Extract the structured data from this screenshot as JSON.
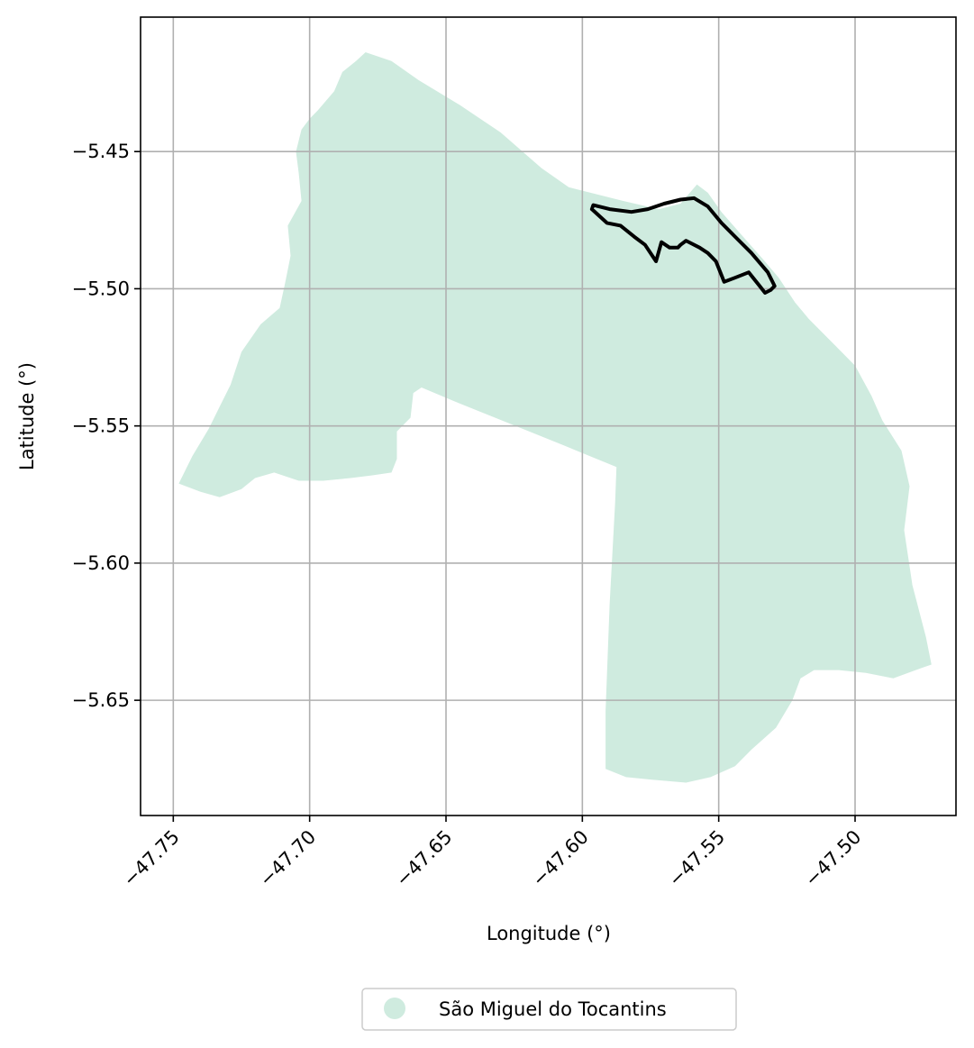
{
  "chart_data": {
    "type": "map",
    "xlabel": "Longitude (°)",
    "ylabel": "Latitude (°)",
    "xlim": [
      -47.762,
      -47.463
    ],
    "ylim": [
      -5.692,
      -5.401
    ],
    "xticks": [
      -47.75,
      -47.7,
      -47.65,
      -47.6,
      -47.55,
      -47.5
    ],
    "xtick_labels": [
      "−47.75",
      "−47.70",
      "−47.65",
      "−47.60",
      "−47.55",
      "−47.50"
    ],
    "yticks": [
      -5.45,
      -5.5,
      -5.55,
      -5.6,
      -5.65
    ],
    "ytick_labels": [
      "−5.45",
      "−5.50",
      "−5.55",
      "−5.60",
      "−5.65"
    ],
    "grid": true,
    "legend": {
      "placement": "bottom-center",
      "entries": [
        "São Miguel do Tocantins"
      ]
    },
    "fill_color": "#cfebdf",
    "outline_color": "#000000",
    "region": {
      "name": "São Miguel do Tocantins",
      "boundary": [
        [
          -47.6795,
          -5.4138
        ],
        [
          -47.67,
          -5.417
        ],
        [
          -47.66,
          -5.424
        ],
        [
          -47.645,
          -5.433
        ],
        [
          -47.63,
          -5.443
        ],
        [
          -47.615,
          -5.456
        ],
        [
          -47.605,
          -5.463
        ],
        [
          -47.597,
          -5.465
        ],
        [
          -47.585,
          -5.468
        ],
        [
          -47.572,
          -5.471
        ],
        [
          -47.564,
          -5.469
        ],
        [
          -47.558,
          -5.462
        ],
        [
          -47.554,
          -5.465
        ],
        [
          -47.549,
          -5.472
        ],
        [
          -47.542,
          -5.48
        ],
        [
          -47.534,
          -5.489
        ],
        [
          -47.528,
          -5.496
        ],
        [
          -47.522,
          -5.505
        ],
        [
          -47.517,
          -5.511
        ],
        [
          -47.508,
          -5.52
        ],
        [
          -47.5,
          -5.528
        ],
        [
          -47.494,
          -5.539
        ],
        [
          -47.49,
          -5.548
        ],
        [
          -47.483,
          -5.559
        ],
        [
          -47.48,
          -5.572
        ],
        [
          -47.482,
          -5.588
        ],
        [
          -47.479,
          -5.608
        ],
        [
          -47.474,
          -5.627
        ],
        [
          -47.472,
          -5.637
        ],
        [
          -47.475,
          -5.638
        ],
        [
          -47.486,
          -5.642
        ],
        [
          -47.496,
          -5.64
        ],
        [
          -47.506,
          -5.639
        ],
        [
          -47.515,
          -5.639
        ],
        [
          -47.52,
          -5.642
        ],
        [
          -47.523,
          -5.65
        ],
        [
          -47.529,
          -5.66
        ],
        [
          -47.538,
          -5.668
        ],
        [
          -47.544,
          -5.674
        ],
        [
          -47.553,
          -5.678
        ],
        [
          -47.562,
          -5.68
        ],
        [
          -47.574,
          -5.679
        ],
        [
          -47.584,
          -5.678
        ],
        [
          -47.5915,
          -5.675
        ],
        [
          -47.5915,
          -5.654
        ],
        [
          -47.59,
          -5.615
        ],
        [
          -47.588,
          -5.578
        ],
        [
          -47.5875,
          -5.565
        ],
        [
          -47.607,
          -5.557
        ],
        [
          -47.627,
          -5.549
        ],
        [
          -47.647,
          -5.541
        ],
        [
          -47.659,
          -5.536
        ],
        [
          -47.662,
          -5.538
        ],
        [
          -47.663,
          -5.547
        ],
        [
          -47.668,
          -5.552
        ],
        [
          -47.668,
          -5.562
        ],
        [
          -47.67,
          -5.567
        ],
        [
          -47.677,
          -5.568
        ],
        [
          -47.685,
          -5.569
        ],
        [
          -47.695,
          -5.57
        ],
        [
          -47.704,
          -5.57
        ],
        [
          -47.713,
          -5.567
        ],
        [
          -47.72,
          -5.569
        ],
        [
          -47.725,
          -5.573
        ],
        [
          -47.733,
          -5.576
        ],
        [
          -47.74,
          -5.574
        ],
        [
          -47.748,
          -5.571
        ],
        [
          -47.743,
          -5.561
        ],
        [
          -47.737,
          -5.551
        ],
        [
          -47.733,
          -5.543
        ],
        [
          -47.729,
          -5.535
        ],
        [
          -47.725,
          -5.523
        ],
        [
          -47.718,
          -5.513
        ],
        [
          -47.711,
          -5.507
        ],
        [
          -47.709,
          -5.498
        ],
        [
          -47.707,
          -5.488
        ],
        [
          -47.708,
          -5.477
        ],
        [
          -47.703,
          -5.468
        ],
        [
          -47.704,
          -5.458
        ],
        [
          -47.705,
          -5.45
        ],
        [
          -47.703,
          -5.442
        ],
        [
          -47.7,
          -5.438
        ],
        [
          -47.697,
          -5.435
        ],
        [
          -47.691,
          -5.428
        ],
        [
          -47.688,
          -5.421
        ],
        [
          -47.683,
          -5.417
        ],
        [
          -47.6795,
          -5.4138
        ]
      ]
    },
    "outline": {
      "points": [
        [
          -47.5965,
          -5.471
        ],
        [
          -47.596,
          -5.4695
        ],
        [
          -47.59,
          -5.471
        ],
        [
          -47.582,
          -5.472
        ],
        [
          -47.576,
          -5.471
        ],
        [
          -47.57,
          -5.469
        ],
        [
          -47.564,
          -5.4675
        ],
        [
          -47.559,
          -5.467
        ],
        [
          -47.554,
          -5.47
        ],
        [
          -47.549,
          -5.476
        ],
        [
          -47.544,
          -5.481
        ],
        [
          -47.538,
          -5.487
        ],
        [
          -47.532,
          -5.494
        ],
        [
          -47.5295,
          -5.499
        ],
        [
          -47.531,
          -5.5005
        ],
        [
          -47.533,
          -5.5015
        ],
        [
          -47.535,
          -5.499
        ],
        [
          -47.539,
          -5.494
        ],
        [
          -47.544,
          -5.496
        ],
        [
          -47.548,
          -5.4975
        ],
        [
          -47.551,
          -5.49
        ],
        [
          -47.554,
          -5.487
        ],
        [
          -47.557,
          -5.485
        ],
        [
          -47.562,
          -5.4825
        ],
        [
          -47.564,
          -5.484
        ],
        [
          -47.565,
          -5.485
        ],
        [
          -47.568,
          -5.485
        ],
        [
          -47.571,
          -5.483
        ],
        [
          -47.573,
          -5.49
        ],
        [
          -47.577,
          -5.484
        ],
        [
          -47.581,
          -5.481
        ],
        [
          -47.586,
          -5.477
        ],
        [
          -47.591,
          -5.476
        ],
        [
          -47.5965,
          -5.471
        ]
      ]
    }
  }
}
